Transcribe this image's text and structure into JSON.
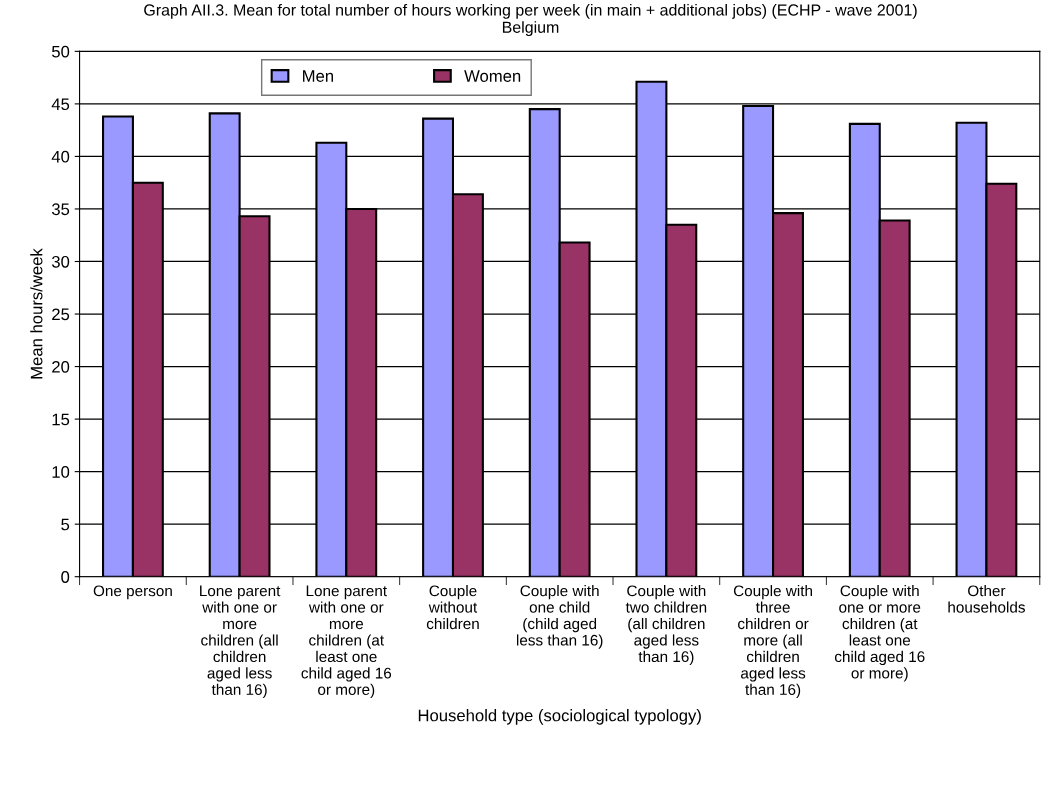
{
  "chart_data": {
    "type": "bar",
    "title": "Graph AII.3. Mean for total number of hours working per week (in main + additional jobs) (ECHP - wave 2001)",
    "subtitle": "Belgium",
    "xlabel": "Household type (sociological typology)",
    "ylabel": "Mean hours/week",
    "categories": [
      "One person",
      "Lone parent\nwith one or\nmore\nchildren (all\nchildren\naged less\nthan 16)",
      "Lone parent\nwith one or\nmore\nchildren (at\nleast one\nchild aged 16\nor more)",
      "Couple\nwithout\nchildren",
      "Couple with\none child\n(child aged\nless than 16)",
      "Couple with\ntwo children\n(all children\naged less\nthan 16)",
      "Couple with\nthree\nchildren or\nmore (all\nchildren\naged less\nthan 16)",
      "Couple with\none or more\nchildren (at\nleast one\nchild aged 16\nor more)",
      "Other\nhouseholds"
    ],
    "series": [
      {
        "name": "Men",
        "color": "#9999ff",
        "values": [
          43.8,
          44.1,
          41.3,
          43.6,
          44.5,
          47.1,
          44.8,
          43.1,
          43.2
        ]
      },
      {
        "name": "Women",
        "color": "#993366",
        "values": [
          37.5,
          34.3,
          35.0,
          36.4,
          31.8,
          33.5,
          34.6,
          33.9,
          37.4
        ]
      }
    ],
    "ylim": [
      0,
      50
    ],
    "yticks": [
      0,
      5,
      10,
      15,
      20,
      25,
      30,
      35,
      40,
      45,
      50
    ],
    "grid": "y",
    "legend": "top"
  }
}
